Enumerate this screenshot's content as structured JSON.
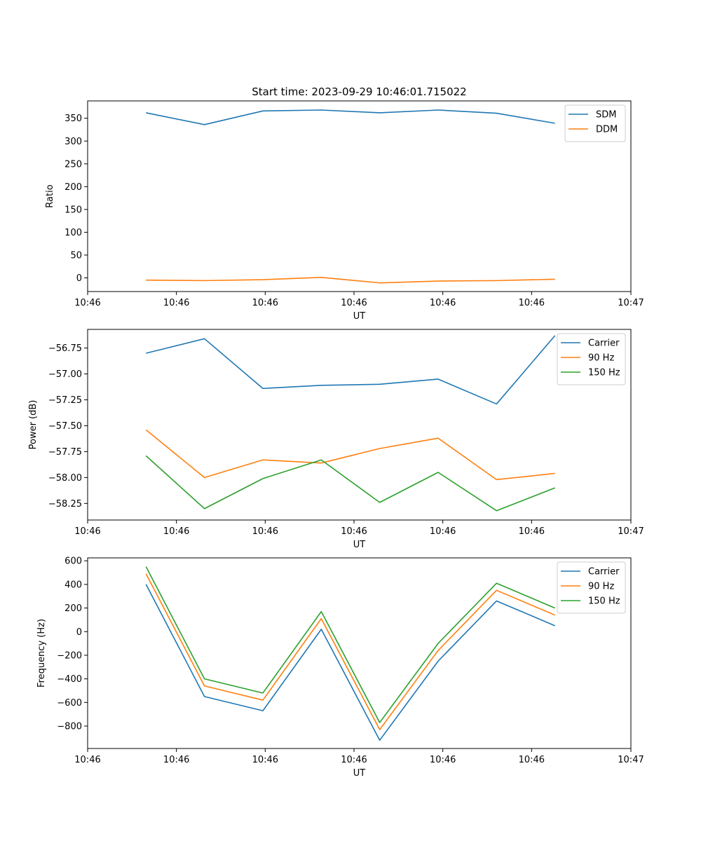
{
  "chart_data": [
    {
      "type": "line",
      "title": "Start time: 2023-09-29 10:46:01.715022",
      "xlabel": "UT",
      "ylabel": "Ratio",
      "x": [
        1,
        2,
        3,
        4,
        5,
        6,
        7,
        8
      ],
      "xlim": [
        0,
        9.3
      ],
      "xticks": [
        0,
        1.52,
        3.04,
        4.56,
        6.08,
        7.6,
        9.3
      ],
      "xtick_labels": [
        "10:46",
        "10:46",
        "10:46",
        "10:46",
        "10:46",
        "10:46",
        "10:47"
      ],
      "ylim": [
        -30,
        388
      ],
      "yticks": [
        0,
        50,
        100,
        150,
        200,
        250,
        300,
        350
      ],
      "ytick_labels": [
        "0",
        "50",
        "100",
        "150",
        "200",
        "250",
        "300",
        "350"
      ],
      "legend": "top-right",
      "grid": false,
      "series": [
        {
          "name": "SDM",
          "color": "#1f77b4",
          "values": [
            362,
            336,
            366,
            368,
            362,
            368,
            361,
            339
          ]
        },
        {
          "name": "DDM",
          "color": "#ff7f0e",
          "values": [
            -5,
            -6,
            -4,
            1,
            -11,
            -7,
            -6,
            -3
          ]
        }
      ]
    },
    {
      "type": "line",
      "title": "",
      "xlabel": "UT",
      "ylabel": "Power (dB)",
      "x": [
        1,
        2,
        3,
        4,
        5,
        6,
        7,
        8
      ],
      "xlim": [
        0,
        9.3
      ],
      "xticks": [
        0,
        1.52,
        3.04,
        4.56,
        6.08,
        7.6,
        9.3
      ],
      "xtick_labels": [
        "10:46",
        "10:46",
        "10:46",
        "10:46",
        "10:46",
        "10:46",
        "10:47"
      ],
      "ylim": [
        -58.41,
        -56.57
      ],
      "yticks": [
        -58.25,
        -58.0,
        -57.75,
        -57.5,
        -57.25,
        -57.0,
        -56.75
      ],
      "ytick_labels": [
        "−58.25",
        "−58.00",
        "−57.75",
        "−57.50",
        "−57.25",
        "−57.00",
        "−56.75"
      ],
      "legend": "top-right",
      "grid": false,
      "series": [
        {
          "name": "Carrier",
          "color": "#1f77b4",
          "values": [
            -56.8,
            -56.66,
            -57.14,
            -57.11,
            -57.1,
            -57.05,
            -57.29,
            -56.63
          ]
        },
        {
          "name": "90 Hz",
          "color": "#ff7f0e",
          "values": [
            -57.54,
            -58.0,
            -57.83,
            -57.86,
            -57.72,
            -57.62,
            -58.02,
            -57.96
          ]
        },
        {
          "name": "150 Hz",
          "color": "#2ca02c",
          "values": [
            -57.79,
            -58.3,
            -58.01,
            -57.83,
            -58.24,
            -57.95,
            -58.32,
            -58.1
          ]
        }
      ]
    },
    {
      "type": "line",
      "title": "",
      "xlabel": "UT",
      "ylabel": "Frequency (Hz)",
      "x": [
        1,
        2,
        3,
        4,
        5,
        6,
        7,
        8
      ],
      "xlim": [
        0,
        9.3
      ],
      "xticks": [
        0,
        1.52,
        3.04,
        4.56,
        6.08,
        7.6,
        9.3
      ],
      "xtick_labels": [
        "10:46",
        "10:46",
        "10:46",
        "10:46",
        "10:46",
        "10:46",
        "10:47"
      ],
      "ylim": [
        -990,
        625
      ],
      "yticks": [
        -800,
        -600,
        -400,
        -200,
        0,
        200,
        400,
        600
      ],
      "ytick_labels": [
        "−800",
        "−600",
        "−400",
        "−200",
        "0",
        "200",
        "400",
        "600"
      ],
      "legend": "top-right",
      "grid": false,
      "series": [
        {
          "name": "Carrier",
          "color": "#1f77b4",
          "values": [
            400,
            -550,
            -670,
            20,
            -920,
            -250,
            260,
            50
          ]
        },
        {
          "name": "90 Hz",
          "color": "#ff7f0e",
          "values": [
            490,
            -460,
            -580,
            110,
            -830,
            -160,
            350,
            140
          ]
        },
        {
          "name": "150 Hz",
          "color": "#2ca02c",
          "values": [
            550,
            -400,
            -520,
            170,
            -770,
            -100,
            410,
            200
          ]
        }
      ]
    }
  ]
}
